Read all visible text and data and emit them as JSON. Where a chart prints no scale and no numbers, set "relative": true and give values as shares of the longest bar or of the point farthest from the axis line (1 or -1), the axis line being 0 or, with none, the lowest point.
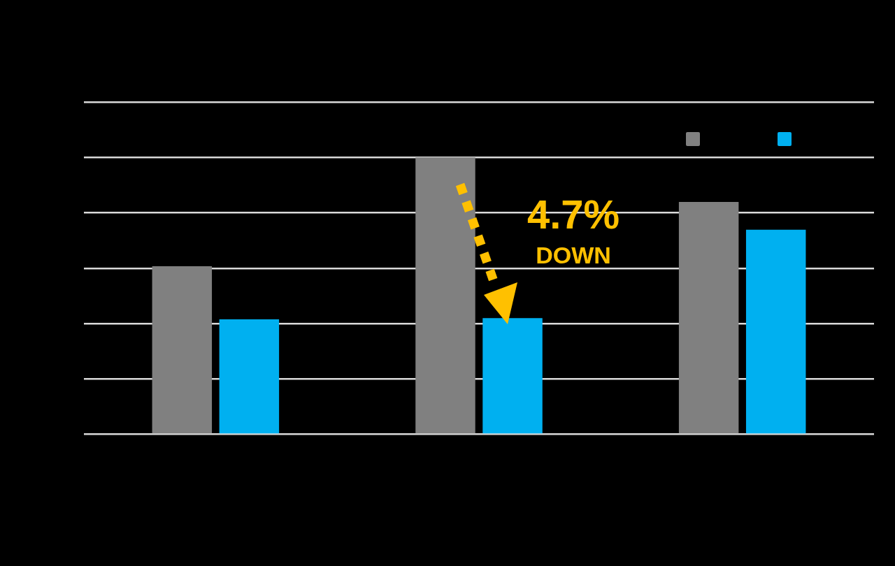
{
  "chart_data": {
    "type": "bar",
    "categories": [
      null,
      null,
      null
    ],
    "relative": true,
    "series": [
      {
        "color": "#808080",
        "values": [
          0.607,
          1,
          0.839
        ]
      },
      {
        "color": "#00b0f0",
        "values": [
          0.415,
          0.42,
          0.739
        ]
      }
    ],
    "annotations": [
      "4.7%",
      "DOWN"
    ],
    "grid": "y"
  }
}
